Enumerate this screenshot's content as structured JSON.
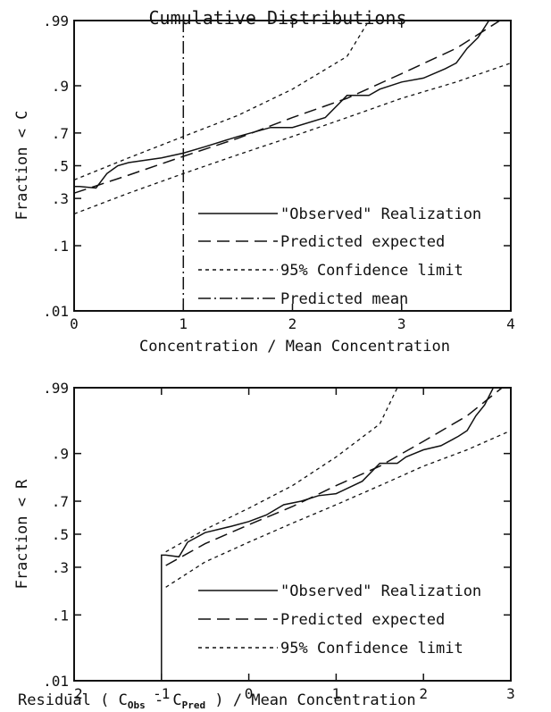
{
  "chart_data": [
    {
      "type": "line",
      "title": "Cumulative Distributions",
      "xlabel": "Concentration / Mean Concentration",
      "ylabel": "Fraction < C",
      "xlim": [
        0,
        4
      ],
      "y_scale": "normal-probability",
      "ylim": [
        0.01,
        0.99
      ],
      "x_ticks": [
        "0",
        "1",
        "2",
        "3",
        "4"
      ],
      "y_ticks": [
        {
          "value": 0.01,
          "label": ".01"
        },
        {
          "value": 0.1,
          "label": ".1"
        },
        {
          "value": 0.3,
          "label": ".3"
        },
        {
          "value": 0.5,
          "label": ".5"
        },
        {
          "value": 0.7,
          "label": ".7"
        },
        {
          "value": 0.9,
          "label": ".9"
        },
        {
          "value": 0.99,
          "label": ".99"
        }
      ],
      "legend_position": "bottom-right",
      "series": [
        {
          "name": "\"Observed\" Realization",
          "style": "solid",
          "x": [
            0.0,
            0.05,
            0.2,
            0.3,
            0.4,
            0.5,
            0.6,
            0.8,
            1.0,
            1.2,
            1.5,
            1.8,
            2.0,
            2.3,
            2.5,
            2.7,
            2.8,
            3.0,
            3.2,
            3.4,
            3.5,
            3.6,
            3.7,
            3.8,
            4.0
          ],
          "y": [
            0.37,
            0.37,
            0.36,
            0.45,
            0.5,
            0.52,
            0.53,
            0.55,
            0.58,
            0.62,
            0.68,
            0.73,
            0.73,
            0.78,
            0.87,
            0.87,
            0.89,
            0.91,
            0.92,
            0.94,
            0.95,
            0.97,
            0.98,
            0.99,
            0.99
          ]
        },
        {
          "name": "Predicted expected",
          "style": "long-dash",
          "x": [
            0,
            0.5,
            1,
            1.5,
            2,
            2.5,
            3,
            3.5,
            3.9
          ],
          "y": [
            0.33,
            0.44,
            0.56,
            0.67,
            0.78,
            0.86,
            0.93,
            0.97,
            0.99
          ]
        },
        {
          "name": "95% Confidence limit",
          "style": "short-dash",
          "x": [
            0,
            0.5,
            1,
            1.5,
            2,
            2.5,
            2.7
          ],
          "y": [
            0.41,
            0.55,
            0.68,
            0.79,
            0.89,
            0.96,
            0.99
          ]
        },
        {
          "name": "",
          "style": "short-dash",
          "x": [
            0,
            0.5,
            1,
            1.5,
            2,
            2.5,
            3,
            3.5,
            4
          ],
          "y": [
            0.22,
            0.33,
            0.45,
            0.57,
            0.68,
            0.78,
            0.86,
            0.91,
            0.95
          ]
        },
        {
          "name": "Predicted mean",
          "style": "dash-dot",
          "x": [
            1,
            1
          ],
          "y": [
            0.01,
            0.99
          ]
        }
      ]
    },
    {
      "type": "line",
      "title": "",
      "xlabel_parts": [
        "Residual  ( C",
        "Obs",
        " - C",
        "Pred",
        " ) / Mean Concentration"
      ],
      "ylabel": "Fraction < R",
      "xlim": [
        -2,
        3
      ],
      "y_scale": "normal-probability",
      "ylim": [
        0.01,
        0.99
      ],
      "x_ticks": [
        "-2",
        "-1",
        "0",
        "1",
        "2",
        "3"
      ],
      "y_ticks": [
        {
          "value": 0.01,
          "label": ".01"
        },
        {
          "value": 0.1,
          "label": ".1"
        },
        {
          "value": 0.3,
          "label": ".3"
        },
        {
          "value": 0.5,
          "label": ".5"
        },
        {
          "value": 0.7,
          "label": ".7"
        },
        {
          "value": 0.9,
          "label": ".9"
        },
        {
          "value": 0.99,
          "label": ".99"
        }
      ],
      "legend_position": "bottom-right",
      "series": [
        {
          "name": "\"Observed\" Realization",
          "style": "solid",
          "x": [
            -1.0,
            -1.0,
            -0.95,
            -0.8,
            -0.7,
            -0.5,
            -0.2,
            0.0,
            0.2,
            0.4,
            0.6,
            0.8,
            1.0,
            1.3,
            1.5,
            1.7,
            1.8,
            2.0,
            2.2,
            2.4,
            2.5,
            2.6,
            2.7,
            2.8,
            3.0
          ],
          "y": [
            0.01,
            0.37,
            0.37,
            0.36,
            0.45,
            0.51,
            0.55,
            0.58,
            0.62,
            0.68,
            0.7,
            0.73,
            0.74,
            0.8,
            0.87,
            0.87,
            0.89,
            0.91,
            0.92,
            0.94,
            0.95,
            0.97,
            0.98,
            0.99,
            0.99
          ]
        },
        {
          "name": "Predicted expected",
          "style": "long-dash",
          "x": [
            -0.95,
            -0.5,
            0,
            0.5,
            1,
            1.5,
            2,
            2.5,
            2.9
          ],
          "y": [
            0.31,
            0.44,
            0.56,
            0.67,
            0.78,
            0.86,
            0.93,
            0.97,
            0.99
          ]
        },
        {
          "name": "95% Confidence limit",
          "style": "short-dash",
          "x": [
            -0.95,
            -0.5,
            0,
            0.5,
            1,
            1.5,
            1.7
          ],
          "y": [
            0.39,
            0.53,
            0.66,
            0.78,
            0.89,
            0.96,
            0.99
          ]
        },
        {
          "name": "",
          "style": "short-dash",
          "x": [
            -0.95,
            -0.5,
            0,
            0.5,
            1,
            1.5,
            2,
            2.5,
            3
          ],
          "y": [
            0.2,
            0.33,
            0.45,
            0.57,
            0.68,
            0.78,
            0.86,
            0.91,
            0.95
          ]
        }
      ]
    }
  ]
}
